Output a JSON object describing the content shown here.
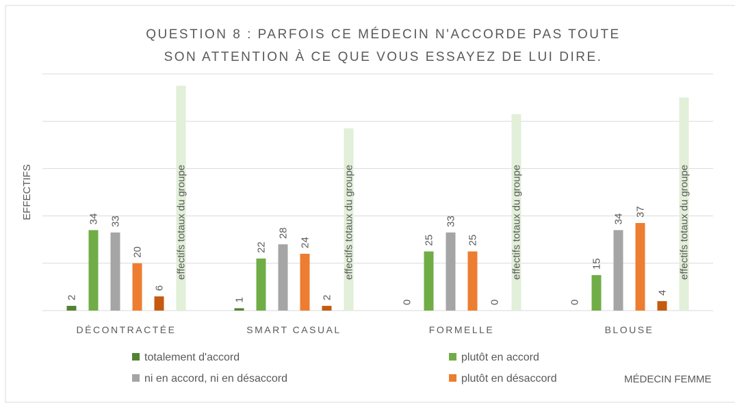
{
  "chart_data": {
    "type": "bar",
    "title": [
      "QUESTION 8 : PARFOIS CE MÉDECIN N'ACCORDE PAS TOUTE",
      "SON ATTENTION À CE QUE VOUS ESSAYEZ DE LUI DIRE."
    ],
    "y_label": "EFFECTIFS",
    "annotation": "MÉDECIN FEMME",
    "categories": [
      "DÉCONTRACTÉE",
      "SMART CASUAL",
      "FORMELLE",
      "BLOUSE"
    ],
    "series": [
      {
        "name": "totalement d'accord",
        "color": "#548235",
        "values": [
          2,
          1,
          0,
          0
        ]
      },
      {
        "name": "plutôt en accord",
        "color": "#70ad47",
        "values": [
          34,
          22,
          25,
          15
        ]
      },
      {
        "name": "ni en accord, ni en désaccord",
        "color": "#a5a5a5",
        "values": [
          33,
          28,
          33,
          34
        ]
      },
      {
        "name": "plutôt en désaccord",
        "color": "#ed7d31",
        "values": [
          20,
          24,
          25,
          37
        ]
      },
      {
        "color": "#c55a11",
        "values": [
          6,
          2,
          0,
          4
        ]
      },
      {
        "data_label": "effectifs totaux du groupe",
        "color": "#e2efd9",
        "values": [
          95,
          77,
          83,
          90
        ]
      }
    ],
    "ylim": [
      0,
      100
    ],
    "yticks": [
      0,
      20,
      40,
      60,
      80,
      100
    ],
    "grid": true
  }
}
